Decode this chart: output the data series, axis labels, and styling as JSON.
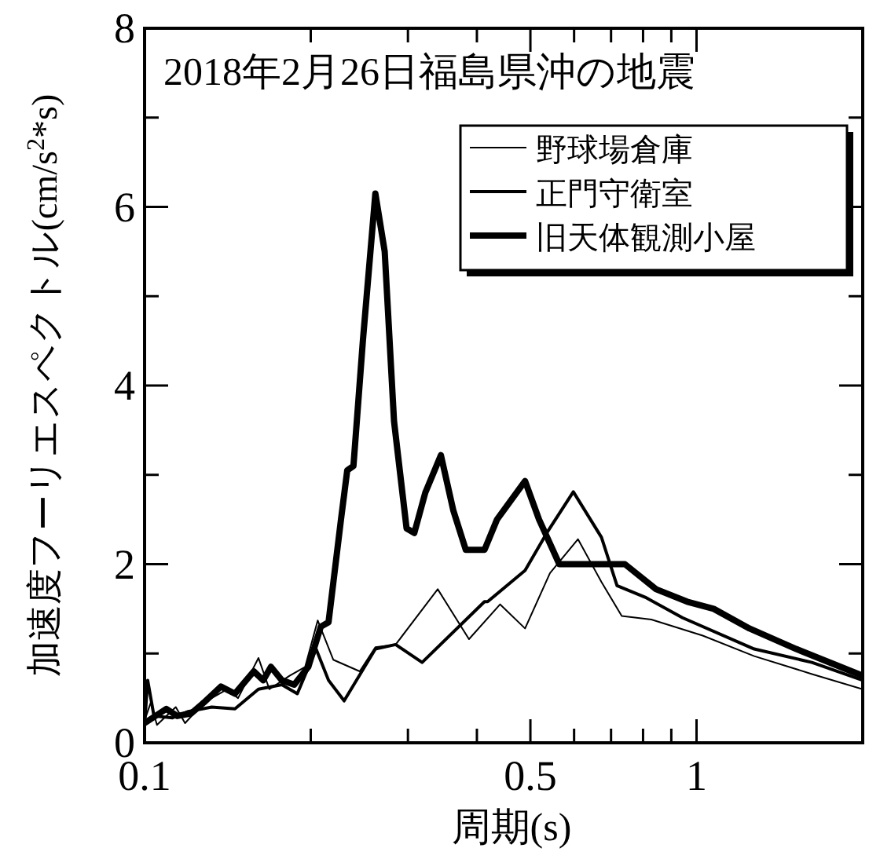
{
  "chart_data": {
    "type": "line",
    "title": "2018年2月26日福島県沖の地震",
    "xlabel": "周期(s)",
    "ylabel": "加速度フーリエスペクトル(cm/s$^{2}$*s)",
    "log": "x",
    "xlim": [
      0.1,
      2
    ],
    "ylim": [
      0,
      8
    ],
    "xticks": [
      0.1,
      {
        "value": 0.2,
        "label": null
      },
      {
        "value": 0.3,
        "label": null
      },
      {
        "value": 0.4,
        "label": null
      },
      0.5,
      {
        "value": 0.6,
        "label": null
      },
      {
        "value": 0.7,
        "label": null
      },
      {
        "value": 0.8,
        "label": null
      },
      {
        "value": 0.9,
        "label": null
      },
      1
    ],
    "yticks": [
      0,
      {
        "value": 1,
        "label": null
      },
      2,
      {
        "value": 3,
        "label": null
      },
      4,
      {
        "value": 5,
        "label": null
      },
      6,
      {
        "value": 7,
        "label": null
      },
      8
    ],
    "grid": false,
    "legend": "top right",
    "marker": "none",
    "line_style": "solid",
    "series": [
      {
        "name": "野球場倉庫",
        "color": "#000000",
        "x": [
          0.1,
          0.1026,
          0.1053,
          0.1139,
          0.1184,
          0.128,
          0.1411,
          0.1477,
          0.1608,
          0.1683,
          0.1831,
          0.1954,
          0.2059,
          0.2197,
          0.2453,
          0.2619,
          0.285,
          0.3397,
          0.387,
          0.4407,
          0.489,
          0.5426,
          0.6099,
          0.6726,
          0.7319,
          0.8281,
          1.026,
          1.272,
          1.618,
          2
        ],
        "values": [
          0.25,
          0.45,
          0.2,
          0.4,
          0.22,
          0.45,
          0.6,
          0.5,
          0.95,
          0.6,
          0.75,
          0.85,
          1.37,
          0.93,
          0.8,
          1.07,
          1.1,
          1.72,
          1.16,
          1.55,
          1.28,
          1.9,
          2.28,
          1.8,
          1.42,
          1.38,
          1.2,
          0.97,
          0.77,
          0.6
        ]
      },
      {
        "name": "正門守衛室",
        "color": "#000000",
        "x": [
          0.1,
          0.1013,
          0.104,
          0.1124,
          0.12,
          0.1323,
          0.1458,
          0.1608,
          0.1773,
          0.1891,
          0.2045,
          0.2154,
          0.2299,
          0.2619,
          0.285,
          0.3183,
          0.4129,
          0.4183,
          0.489,
          0.5355,
          0.5981,
          0.6726,
          0.7177,
          0.8069,
          0.9432,
          1.272,
          1.618,
          2
        ],
        "values": [
          0.2,
          0.7,
          0.3,
          0.28,
          0.35,
          0.4,
          0.38,
          0.6,
          0.65,
          0.55,
          1.05,
          0.7,
          0.47,
          1.05,
          1.1,
          0.9,
          1.58,
          1.58,
          1.93,
          2.35,
          2.81,
          2.3,
          1.76,
          1.63,
          1.4,
          1.05,
          0.9,
          0.7
        ]
      },
      {
        "name": "旧天体観測小屋",
        "color": "#000000",
        "x": [
          0.1,
          0.1095,
          0.1146,
          0.1215,
          0.128,
          0.1375,
          0.1458,
          0.1577,
          0.164,
          0.1694,
          0.1773,
          0.1867,
          0.198,
          0.2086,
          0.2154,
          0.2269,
          0.2329,
          0.239,
          0.2486,
          0.2619,
          0.2723,
          0.2831,
          0.2983,
          0.3081,
          0.3225,
          0.3442,
          0.3626,
          0.3819,
          0.4129,
          0.435,
          0.489,
          0.5184,
          0.5641,
          0.6301,
          0.7416,
          0.8445,
          0.9618,
          1.074,
          1.247,
          1.516,
          2
        ],
        "values": [
          0.22,
          0.38,
          0.3,
          0.33,
          0.45,
          0.63,
          0.55,
          0.8,
          0.7,
          0.85,
          0.7,
          0.65,
          0.85,
          1.3,
          1.35,
          2.5,
          3.05,
          3.1,
          4.5,
          6.15,
          5.5,
          3.6,
          2.4,
          2.35,
          2.8,
          3.22,
          2.6,
          2.16,
          2.16,
          2.5,
          2.93,
          2.5,
          2.0,
          2.0,
          2.0,
          1.72,
          1.58,
          1.5,
          1.28,
          1.05,
          0.75
        ]
      }
    ]
  }
}
